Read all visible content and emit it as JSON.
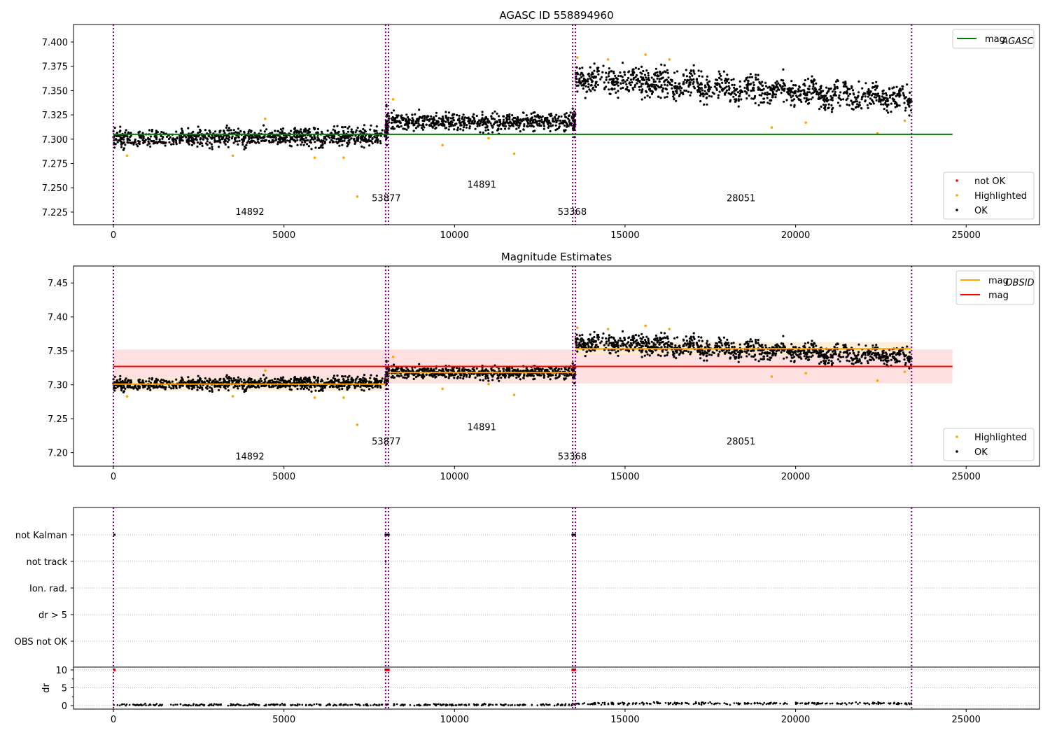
{
  "chart_data": {
    "type": "scatter",
    "xlim": [
      -1170,
      27150
    ],
    "x_ticks": [
      0,
      5000,
      10000,
      15000,
      20000,
      25000
    ],
    "obsid_boundaries": [
      0,
      7980,
      8065,
      13465,
      13545,
      23400
    ],
    "segments": [
      {
        "obsid": "14892",
        "x": [
          0,
          7980
        ],
        "mean": 7.301,
        "slope_per_1000": 0.0002,
        "sd": 0.0045,
        "label_pos": [
          4000,
          7.222
        ],
        "label_pos2": [
          4000,
          7.19
        ]
      },
      {
        "obsid": "53877",
        "x": [
          7980,
          8065
        ],
        "mean": 7.31,
        "slope_per_1000": 0,
        "sd": 0.008,
        "label_pos": [
          8000,
          7.236
        ],
        "label_pos2": [
          8000,
          7.212
        ]
      },
      {
        "obsid": "14891",
        "x": [
          8065,
          13465
        ],
        "mean": 7.318,
        "slope_per_1000": 0,
        "sd": 0.0045,
        "label_pos": [
          10800,
          7.25
        ],
        "label_pos2": [
          10800,
          7.233
        ]
      },
      {
        "obsid": "53368",
        "x": [
          13465,
          13545
        ],
        "mean": 7.318,
        "slope_per_1000": 0,
        "sd": 0.006,
        "label_pos": [
          13450,
          7.222
        ],
        "label_pos2": [
          13450,
          7.19
        ]
      },
      {
        "obsid": "28051",
        "x": [
          13545,
          23400
        ],
        "mean": 7.363,
        "slope_per_1000": -0.0022,
        "sd": 0.007,
        "label_pos": [
          18400,
          7.236
        ],
        "label_pos2": [
          18400,
          7.212
        ]
      }
    ],
    "highlighted_outliers": [
      [
        7150,
        7.241
      ],
      [
        11750,
        7.285
      ],
      [
        9650,
        7.294
      ],
      [
        19300,
        7.312
      ],
      [
        22400,
        7.306
      ],
      [
        15600,
        7.387
      ],
      [
        14500,
        7.382
      ],
      [
        16300,
        7.382
      ],
      [
        6750,
        7.281
      ],
      [
        5900,
        7.281
      ],
      [
        400,
        7.283
      ],
      [
        3500,
        7.283
      ],
      [
        8200,
        7.341
      ],
      [
        20300,
        7.317
      ],
      [
        23200,
        7.319
      ],
      [
        13600,
        7.384
      ],
      [
        4450,
        7.321
      ],
      [
        11000,
        7.301
      ]
    ],
    "panels": [
      {
        "title": "AGASC ID 558894960",
        "ylim": [
          7.212,
          7.418
        ],
        "y_ticks": [
          "7.225",
          "7.250",
          "7.275",
          "7.300",
          "7.325",
          "7.350",
          "7.375",
          "7.400"
        ],
        "mag_agasc": 7.305,
        "line_x": [
          0,
          24600
        ],
        "legend_top": {
          "label": "mag",
          "sub": "AGASC",
          "color": "#008000"
        },
        "legend_bottom": [
          {
            "label": "not OK",
            "color": "#ff0000"
          },
          {
            "label": "Highlighted",
            "color": "#ffa500"
          },
          {
            "label": "OK",
            "color": "#000000"
          }
        ]
      },
      {
        "title": "Magnitude Estimates",
        "ylim": [
          7.18,
          7.475
        ],
        "y_ticks": [
          "7.20",
          "7.25",
          "7.30",
          "7.35",
          "7.40",
          "7.45"
        ],
        "mag": 7.327,
        "mag_band": [
          7.302,
          7.352
        ],
        "mag_obsid": [
          7.301,
          7.31,
          7.318,
          7.318,
          7.353
        ],
        "line_x": [
          0,
          24600
        ],
        "legend_top": [
          {
            "label": "mag",
            "sub": "OBSID",
            "color": "#ffa500"
          },
          {
            "label": "mag",
            "sub": "",
            "color": "#ff0000"
          }
        ],
        "legend_bottom": [
          {
            "label": "Highlighted",
            "color": "#ffa500"
          },
          {
            "label": "OK",
            "color": "#000000"
          }
        ]
      },
      {
        "flag_labels": [
          "not Kalman",
          "not track",
          "Ion. rad.",
          "dr > 5",
          "OBS not OK"
        ],
        "flag_events": {
          "not Kalman": [
            [
              0,
              60
            ],
            [
              7950,
              8100
            ],
            [
              13430,
              13560
            ]
          ],
          "not track": [
            [
              7960,
              7990
            ]
          ]
        },
        "dr_ylabel": "dr",
        "dr_ticks": [
          "0",
          "5",
          "10"
        ],
        "dr_high_events": [
          [
            0,
            60
          ],
          [
            7950,
            8100
          ],
          [
            13430,
            13560
          ]
        ],
        "dr_level_by_segment": [
          0.2,
          0.2,
          0.2,
          0.2,
          0.6
        ]
      }
    ],
    "colors": {
      "ok": "#000000",
      "highlighted": "#ffa500",
      "not_ok": "#ff0000",
      "agasc": "#008000",
      "boundary": "#800080",
      "band": "#ffe0e0",
      "obsid_band": "#ffe8cc"
    }
  }
}
